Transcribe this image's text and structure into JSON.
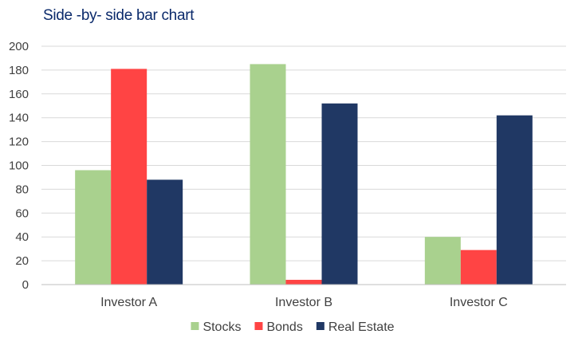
{
  "chart_data": {
    "type": "bar",
    "title": "Side -by- side bar chart",
    "categories": [
      "Investor A",
      "Investor B",
      "Investor C"
    ],
    "series": [
      {
        "name": "Stocks",
        "color": "#a9d18e",
        "values": [
          96,
          185,
          40
        ]
      },
      {
        "name": "Bonds",
        "color": "#ff4444",
        "values": [
          181,
          4,
          29
        ]
      },
      {
        "name": "Real Estate",
        "color": "#203864",
        "values": [
          88,
          152,
          142
        ]
      }
    ],
    "ylim": [
      0,
      200
    ],
    "yticks": [
      "0",
      "20",
      "40",
      "60",
      "80",
      "100",
      "120",
      "140",
      "160",
      "180",
      "200"
    ],
    "xlabel": "",
    "ylabel": "",
    "grid": true,
    "legend_position": "bottom"
  }
}
